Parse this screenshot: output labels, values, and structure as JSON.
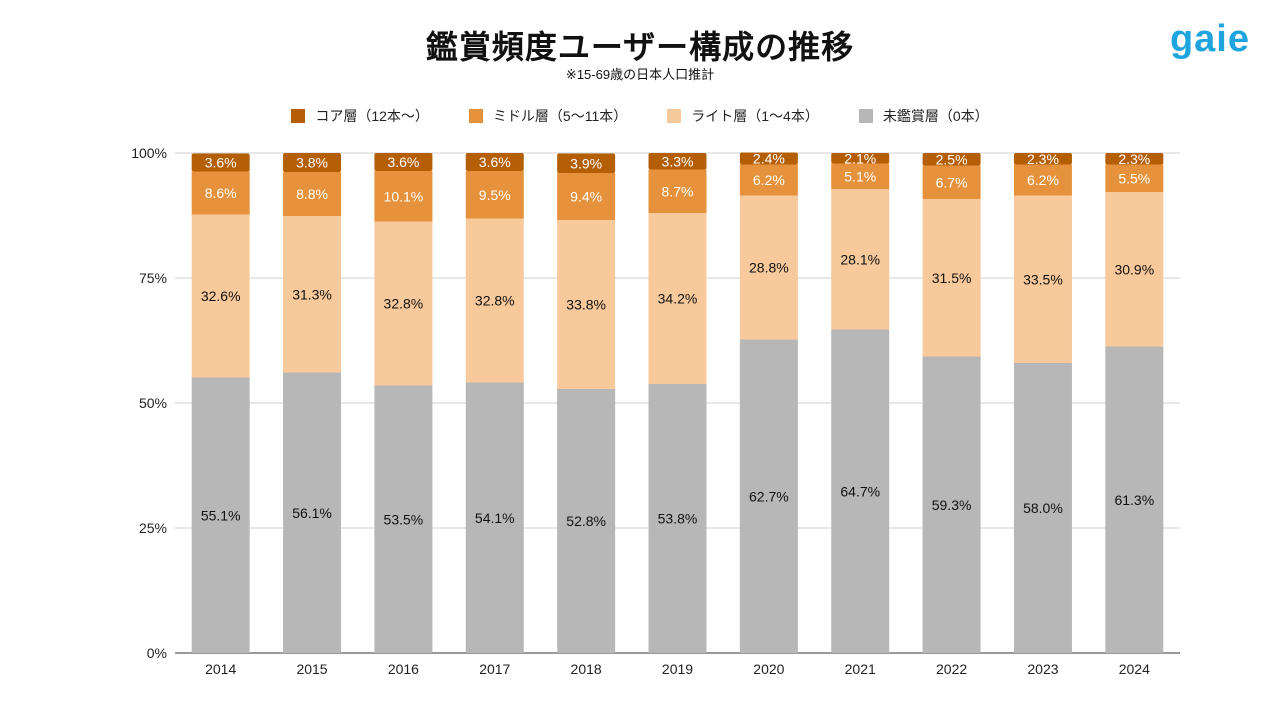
{
  "logo": "gaie",
  "chart_data": {
    "type": "bar",
    "stacked": true,
    "title": "鑑賞頻度ユーザー構成の推移",
    "subtitle": "※15-69歳の日本人口推計",
    "categories": [
      "2014",
      "2015",
      "2016",
      "2017",
      "2018",
      "2019",
      "2020",
      "2021",
      "2022",
      "2023",
      "2024"
    ],
    "series": [
      {
        "name": "未鑑賞層（0本）",
        "color": "#b7b7b7",
        "label_color": "#111111",
        "values": [
          55.1,
          56.1,
          53.5,
          54.1,
          52.8,
          53.8,
          62.7,
          64.7,
          59.3,
          58.0,
          61.3
        ]
      },
      {
        "name": "ライト層（1〜4本）",
        "color": "#f8c99b",
        "label_color": "#111111",
        "values": [
          32.6,
          31.3,
          32.8,
          32.8,
          33.8,
          34.2,
          28.8,
          28.1,
          31.5,
          33.5,
          30.9
        ]
      },
      {
        "name": "ミドル層（5〜11本）",
        "color": "#e6913b",
        "label_color": "#ffffff",
        "values": [
          8.6,
          8.8,
          10.1,
          9.5,
          9.4,
          8.7,
          6.2,
          5.1,
          6.7,
          6.2,
          5.5
        ]
      },
      {
        "name": "コア層（12本〜）",
        "color": "#b45f06",
        "label_color": "#ffffff",
        "values": [
          3.6,
          3.8,
          3.6,
          3.6,
          3.9,
          3.3,
          2.4,
          2.1,
          2.5,
          2.3,
          2.3
        ]
      }
    ],
    "legend_order": [
      "コア層（12本〜）",
      "ミドル層（5〜11本）",
      "ライト層（1〜4本）",
      "未鑑賞層（0本）"
    ],
    "legend_position": "top",
    "yticks": [
      "0%",
      "25%",
      "50%",
      "75%",
      "100%"
    ],
    "ylim": [
      0,
      100
    ],
    "grid": true
  }
}
